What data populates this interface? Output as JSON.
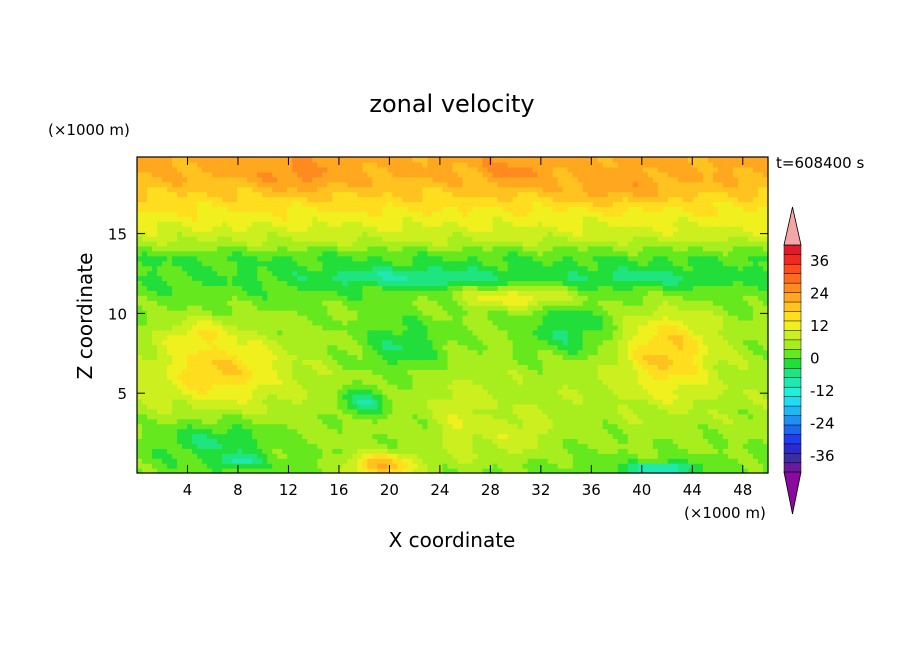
{
  "chart_data": {
    "type": "heatmap",
    "title": "zonal velocity",
    "xlabel": "X coordinate",
    "ylabel": "Z coordinate",
    "x_unit_label": "(×1000 m)",
    "y_unit_label": "(×1000 m)",
    "time_label": "t=608400 s",
    "xlim": [
      0,
      50
    ],
    "ylim": [
      0,
      19.8
    ],
    "x_ticks": [
      4,
      8,
      12,
      16,
      20,
      24,
      28,
      32,
      36,
      40,
      44,
      48
    ],
    "y_ticks": [
      5,
      10,
      15
    ],
    "colorbar": {
      "levels": [
        -42,
        -39,
        -36,
        -33,
        -30,
        -27,
        -24,
        -21,
        -18,
        -15,
        -12,
        -9,
        -6,
        -3,
        0,
        3,
        6,
        9,
        12,
        15,
        18,
        21,
        24,
        27,
        30,
        33,
        36,
        39,
        42
      ],
      "colors": [
        "#6a1aa0",
        "#3b2e9e",
        "#2a2ad0",
        "#1f3cf0",
        "#1e66f0",
        "#1f8ff2",
        "#1fb8f5",
        "#1fdcf5",
        "#1ff0d8",
        "#1fe8b0",
        "#1fe580",
        "#22de3a",
        "#66e81f",
        "#a8ee1f",
        "#ccf01f",
        "#f0f01f",
        "#ffdd1f",
        "#ffc21f",
        "#ffa81f",
        "#ff8a1f",
        "#ff6a1f",
        "#ff4a1f",
        "#f02a1f",
        "#e01a2a"
      ],
      "tick_labels": [
        "36",
        "24",
        "12",
        "0",
        "-12",
        "-24",
        "-36"
      ],
      "tick_values": [
        36,
        24,
        12,
        0,
        -12,
        -24,
        -36
      ],
      "over_color": "#f4a6a6",
      "under_color": "#8a0aa0"
    },
    "field_notes": "approximate zonal velocity field; values in same units as colorbar",
    "field": {
      "background_by_height": [
        {
          "z": 0.5,
          "value": -4
        },
        {
          "z": 2.5,
          "value": -2
        },
        {
          "z": 5.0,
          "value": -1
        },
        {
          "z": 7.5,
          "value": -2
        },
        {
          "z": 10.0,
          "value": -3
        },
        {
          "z": 12.0,
          "value": -6
        },
        {
          "z": 13.5,
          "value": -6
        },
        {
          "z": 14.8,
          "value": 1
        },
        {
          "z": 16.5,
          "value": 6
        },
        {
          "z": 18.5,
          "value": 12
        },
        {
          "z": 19.8,
          "value": 13
        }
      ],
      "blobs": [
        {
          "x": 6.5,
          "z": 6.5,
          "rx": 6.0,
          "rz": 2.6,
          "value": 9
        },
        {
          "x": 5.0,
          "z": 8.5,
          "rx": 3.0,
          "rz": 1.2,
          "value": 7
        },
        {
          "x": 42.0,
          "z": 7.5,
          "rx": 4.5,
          "rz": 3.2,
          "value": 10
        },
        {
          "x": 25.5,
          "z": 3.0,
          "rx": 2.0,
          "rz": 3.5,
          "value": 3
        },
        {
          "x": 30.0,
          "z": 2.5,
          "rx": 3.5,
          "rz": 2.0,
          "value": 2
        },
        {
          "x": 19.5,
          "z": 0.5,
          "rx": 3.5,
          "rz": 1.0,
          "value": 12
        },
        {
          "x": 6.0,
          "z": 2.0,
          "rx": 6.0,
          "rz": 1.6,
          "value": -9
        },
        {
          "x": 8.0,
          "z": 0.8,
          "rx": 2.0,
          "rz": 0.6,
          "value": -14
        },
        {
          "x": 41.5,
          "z": 0.3,
          "rx": 3.5,
          "rz": 0.5,
          "value": -16
        },
        {
          "x": 18.0,
          "z": 4.5,
          "rx": 2.5,
          "rz": 1.2,
          "value": -11
        },
        {
          "x": 21.0,
          "z": 8.0,
          "rx": 4.0,
          "rz": 2.0,
          "value": -9
        },
        {
          "x": 34.0,
          "z": 9.0,
          "rx": 4.0,
          "rz": 2.0,
          "value": -9
        },
        {
          "x": 13.0,
          "z": 18.8,
          "rx": 4.5,
          "rz": 1.2,
          "value": 16
        },
        {
          "x": 30.0,
          "z": 19.0,
          "rx": 3.0,
          "rz": 1.2,
          "value": 16
        },
        {
          "x": 38.0,
          "z": 18.0,
          "rx": 5.0,
          "rz": 1.2,
          "value": 14
        },
        {
          "x": 22.0,
          "z": 12.3,
          "rx": 10.0,
          "rz": 0.8,
          "value": -12
        },
        {
          "x": 40.0,
          "z": 12.3,
          "rx": 8.0,
          "rz": 0.8,
          "value": -10
        },
        {
          "x": 30.0,
          "z": 11.0,
          "rx": 6.0,
          "rz": 0.8,
          "value": 5
        }
      ]
    }
  }
}
